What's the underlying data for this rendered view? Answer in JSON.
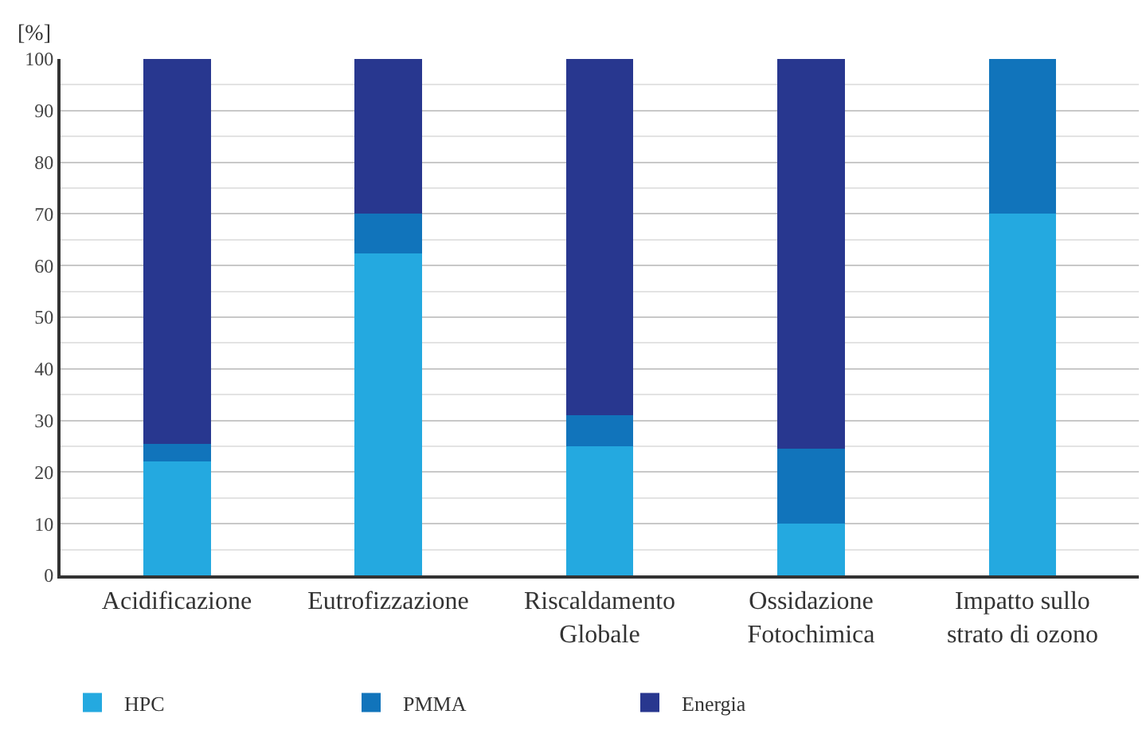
{
  "chart_data": {
    "type": "bar",
    "stacked": true,
    "ylabel": "[%]",
    "categories": [
      "Acidificazione",
      "Eutrofizzazione",
      "Riscaldamento\nGlobale",
      "Ossidazione\nFotochimica",
      "Impatto sullo\nstrato di ozono"
    ],
    "series": [
      {
        "name": "HPC",
        "color": "#24a9e0",
        "values": [
          22,
          62.3,
          25,
          10,
          70
        ]
      },
      {
        "name": "PMMA",
        "color": "#1174bb",
        "values": [
          3.4,
          7.7,
          6,
          14.5,
          30
        ]
      },
      {
        "name": "Energia",
        "color": "#28378f",
        "values": [
          74.6,
          30,
          69,
          75.5,
          0
        ]
      }
    ],
    "ylim": [
      0,
      100
    ],
    "yticks": [
      0,
      10,
      20,
      30,
      40,
      50,
      60,
      70,
      80,
      90,
      100
    ],
    "grid": "y",
    "legend": "bottom"
  }
}
